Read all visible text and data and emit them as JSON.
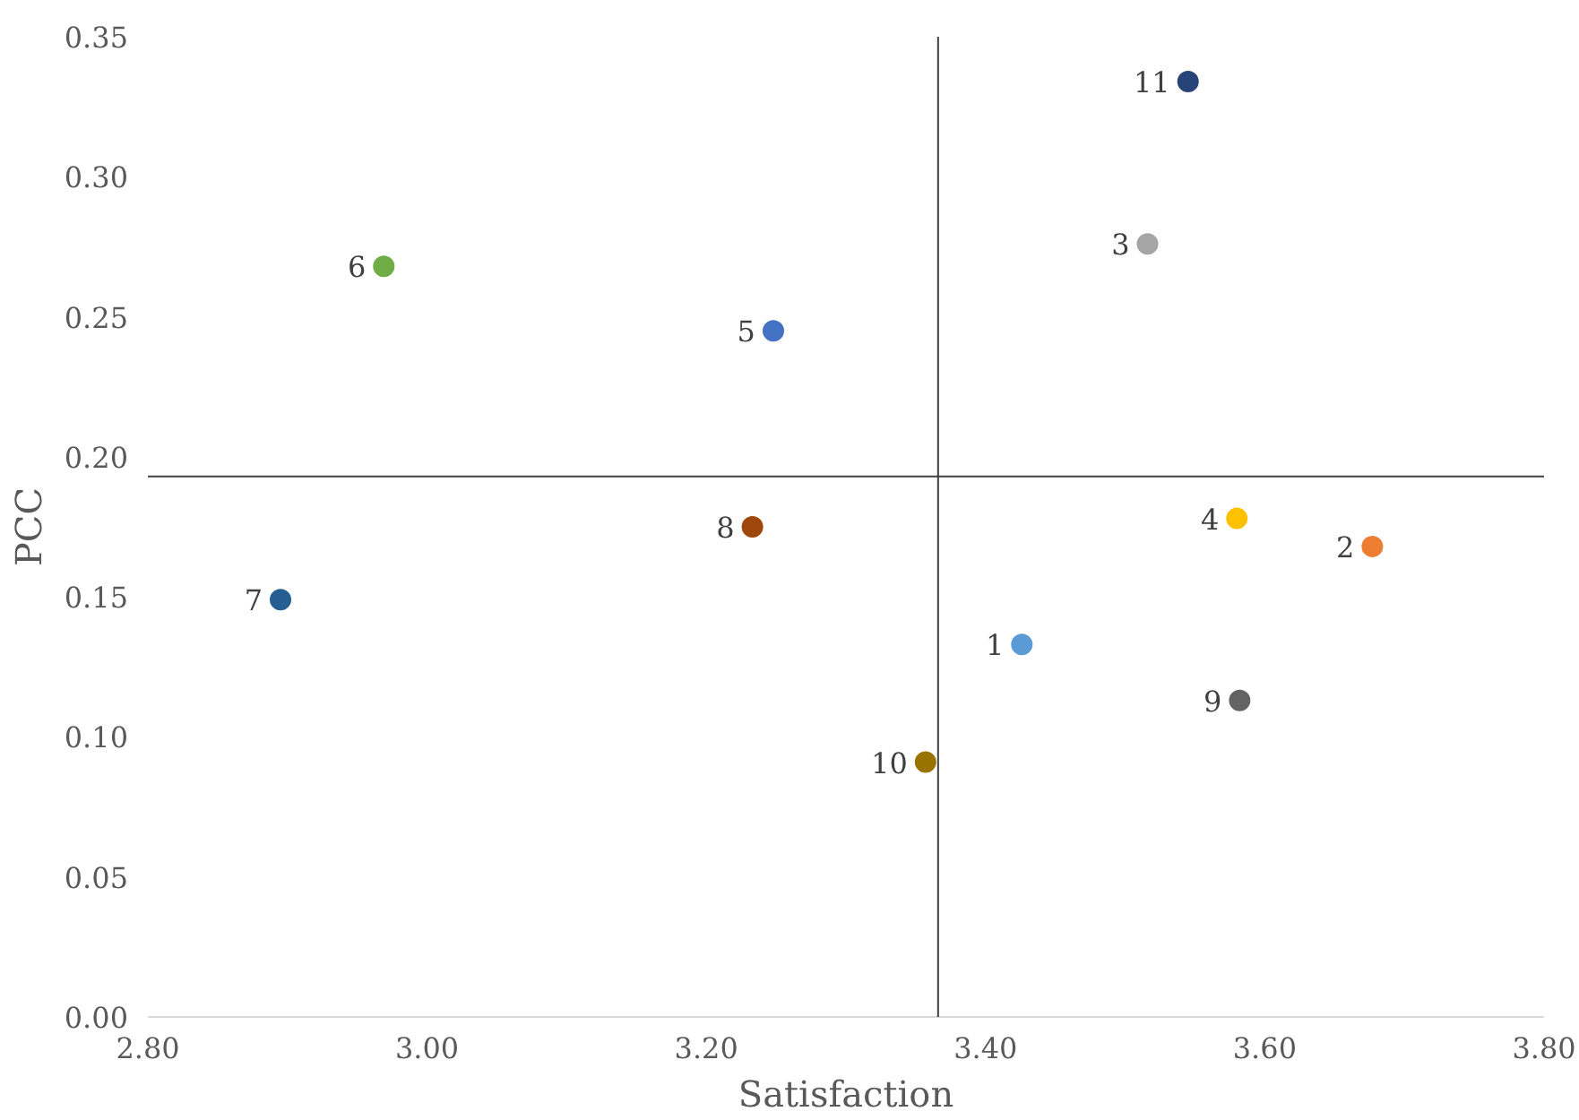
{
  "chart_data": {
    "type": "scatter",
    "xlabel": "Satisfaction",
    "ylabel": "PCC",
    "xlim": [
      2.8,
      3.8
    ],
    "ylim": [
      0,
      0.35
    ],
    "xticks": [
      {
        "value": 2.8,
        "label": "2.80"
      },
      {
        "value": 3.0,
        "label": "3.00"
      },
      {
        "value": 3.2,
        "label": "3.20"
      },
      {
        "value": 3.4,
        "label": "3.40"
      },
      {
        "value": 3.6,
        "label": "3.60"
      },
      {
        "value": 3.8,
        "label": "3.80"
      }
    ],
    "yticks": [
      {
        "value": 0,
        "label": "0.00"
      },
      {
        "value": 0.05,
        "label": "0.05"
      },
      {
        "value": 0.1,
        "label": "0.10"
      },
      {
        "value": 0.15,
        "label": "0.15"
      },
      {
        "value": 0.2,
        "label": "0.20"
      },
      {
        "value": 0.25,
        "label": "0.25"
      },
      {
        "value": 0.3,
        "label": "0.30"
      },
      {
        "value": 0.35,
        "label": "0.35"
      }
    ],
    "grid": false,
    "marker": "circle",
    "ref_lines": [
      {
        "axis": "x",
        "value": 3.366,
        "color": "#404040"
      },
      {
        "axis": "y",
        "value": 0.193,
        "color": "#404040"
      }
    ],
    "series": [
      {
        "name": "1",
        "color": "#5b9bd5",
        "x": [
          3.426
        ],
        "values": [
          0.133
        ]
      },
      {
        "name": "2",
        "color": "#ed7d31",
        "x": [
          3.677
        ],
        "values": [
          0.168
        ]
      },
      {
        "name": "3",
        "color": "#a5a5a5",
        "x": [
          3.516
        ],
        "values": [
          0.276
        ]
      },
      {
        "name": "4",
        "color": "#ffc000",
        "x": [
          3.58
        ],
        "values": [
          0.178
        ]
      },
      {
        "name": "5",
        "color": "#4472c4",
        "x": [
          3.248
        ],
        "values": [
          0.245
        ]
      },
      {
        "name": "6",
        "color": "#70ad47",
        "x": [
          2.969
        ],
        "values": [
          0.268
        ]
      },
      {
        "name": "7",
        "color": "#255e91",
        "x": [
          2.895
        ],
        "values": [
          0.149
        ]
      },
      {
        "name": "8",
        "color": "#9e480e",
        "x": [
          3.233
        ],
        "values": [
          0.175
        ]
      },
      {
        "name": "9",
        "color": "#636363",
        "x": [
          3.582
        ],
        "values": [
          0.113
        ]
      },
      {
        "name": "10",
        "color": "#997300",
        "x": [
          3.357
        ],
        "values": [
          0.091
        ]
      },
      {
        "name": "11",
        "color": "#264478",
        "x": [
          3.545
        ],
        "values": [
          0.334
        ]
      }
    ]
  }
}
